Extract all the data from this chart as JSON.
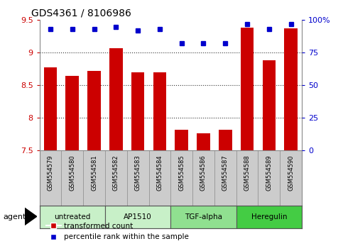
{
  "title": "GDS4361 / 8106986",
  "samples": [
    "GSM554579",
    "GSM554580",
    "GSM554581",
    "GSM554582",
    "GSM554583",
    "GSM554584",
    "GSM554585",
    "GSM554586",
    "GSM554587",
    "GSM554588",
    "GSM554589",
    "GSM554590"
  ],
  "bar_values": [
    8.78,
    8.65,
    8.72,
    9.07,
    8.7,
    8.7,
    7.82,
    7.76,
    7.82,
    9.38,
    8.88,
    9.37
  ],
  "percentile_values": [
    93,
    93,
    93,
    95,
    92,
    93,
    82,
    82,
    82,
    97,
    93,
    97
  ],
  "bar_color": "#cc0000",
  "dot_color": "#0000cc",
  "ylim_left": [
    7.5,
    9.5
  ],
  "ylim_right": [
    0,
    100
  ],
  "yticks_left": [
    7.5,
    8.0,
    8.5,
    9.0,
    9.5
  ],
  "yticks_right": [
    0,
    25,
    50,
    75,
    100
  ],
  "ytick_labels_left": [
    "7.5",
    "8",
    "8.5",
    "9",
    "9.5"
  ],
  "ytick_labels_right": [
    "0",
    "25",
    "50",
    "75",
    "100%"
  ],
  "groups": [
    {
      "label": "untreated",
      "start": 0,
      "end": 3,
      "color": "#c8f0c8"
    },
    {
      "label": "AP1510",
      "start": 3,
      "end": 6,
      "color": "#c8f0c8"
    },
    {
      "label": "TGF-alpha",
      "start": 6,
      "end": 9,
      "color": "#90e090"
    },
    {
      "label": "Heregulin",
      "start": 9,
      "end": 12,
      "color": "#44cc44"
    }
  ],
  "agent_label": "agent",
  "legend_items": [
    {
      "label": "transformed count",
      "color": "#cc0000",
      "marker": "s"
    },
    {
      "label": "percentile rank within the sample",
      "color": "#0000cc",
      "marker": "s"
    }
  ],
  "grid_yticks": [
    9.0,
    8.5,
    8.0
  ],
  "bg_sample_row": "#cccccc",
  "bar_bottom": 7.5,
  "bar_width": 0.6
}
